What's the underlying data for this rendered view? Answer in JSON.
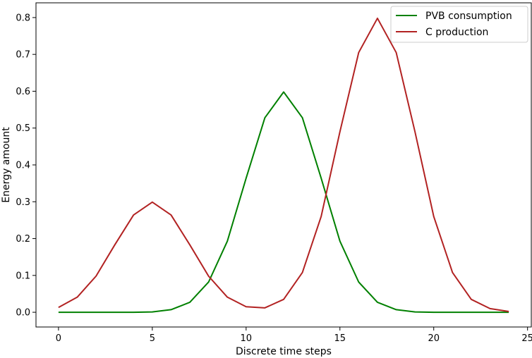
{
  "chart_data": {
    "type": "line",
    "xlabel": "Discrete time steps",
    "ylabel": "Energy amount",
    "xlim": [
      -1.2,
      25.2
    ],
    "ylim": [
      -0.04,
      0.84
    ],
    "xticks": [
      0,
      5,
      10,
      15,
      20,
      25
    ],
    "yticks": [
      0.0,
      0.1,
      0.2,
      0.3,
      0.4,
      0.5,
      0.6,
      0.7,
      0.8
    ],
    "xtick_labels": [
      "0",
      "5",
      "10",
      "15",
      "20",
      "25"
    ],
    "ytick_labels": [
      "0.0",
      "0.1",
      "0.2",
      "0.3",
      "0.4",
      "0.5",
      "0.6",
      "0.7",
      "0.8"
    ],
    "grid": false,
    "legend_position": "top-right",
    "x": [
      0,
      1,
      2,
      3,
      4,
      5,
      6,
      7,
      8,
      9,
      10,
      11,
      12,
      13,
      14,
      15,
      16,
      17,
      18,
      19,
      20,
      21,
      22,
      23,
      24
    ],
    "series": [
      {
        "name": "PVB consumption",
        "color": "#008000",
        "values": [
          0.0,
          0.0,
          0.0,
          0.0,
          0.0,
          0.001,
          0.007,
          0.027,
          0.082,
          0.193,
          0.364,
          0.528,
          0.598,
          0.528,
          0.364,
          0.193,
          0.082,
          0.027,
          0.007,
          0.001,
          0.0,
          0.0,
          0.0,
          0.0,
          0.0
        ]
      },
      {
        "name": "C production",
        "color": "#b22222",
        "values": [
          0.013,
          0.041,
          0.098,
          0.183,
          0.264,
          0.299,
          0.264,
          0.183,
          0.098,
          0.041,
          0.015,
          0.012,
          0.035,
          0.108,
          0.26,
          0.49,
          0.705,
          0.798,
          0.705,
          0.49,
          0.26,
          0.108,
          0.035,
          0.01,
          0.002
        ]
      }
    ]
  }
}
